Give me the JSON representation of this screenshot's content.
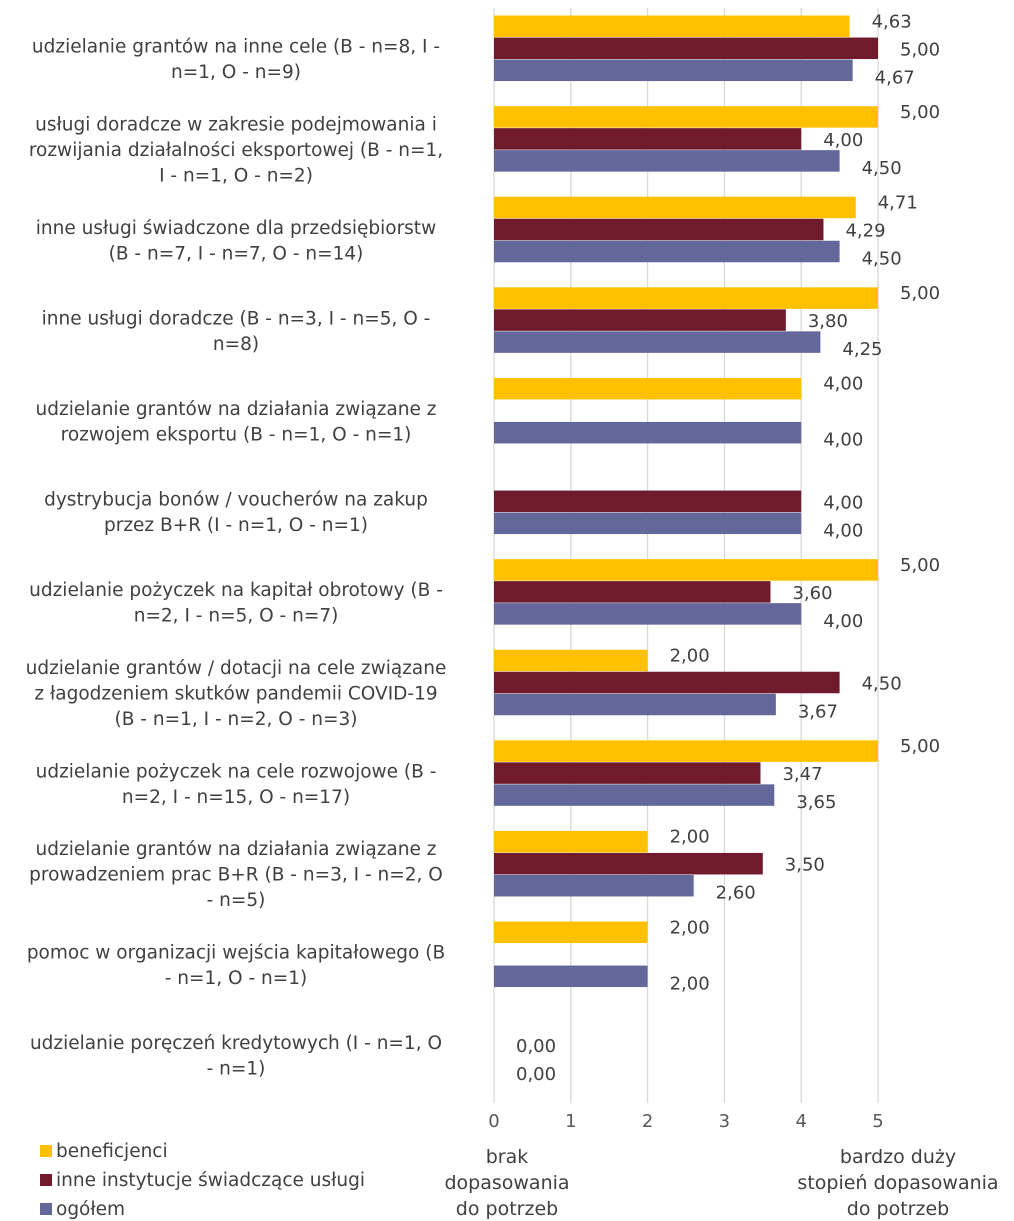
{
  "chart_data": {
    "type": "bar",
    "orientation": "horizontal",
    "categories": [
      "udzielanie grantów na inne cele (B - n=8, I - n=1, O - n=9)",
      "usługi doradcze w zakresie podejmowania i rozwijania działalności eksportowej (B - n=1, I - n=1, O - n=2)",
      "inne usługi świadczone dla przedsiębiorstw (B - n=7, I - n=7, O - n=14)",
      "inne usługi doradcze (B - n=3, I - n=5, O - n=8)",
      "udzielanie grantów na działania związane z rozwojem eksportu (B - n=1, O - n=1)",
      "dystrybucja bonów / voucherów na zakup przez B+R (I - n=1, O - n=1)",
      "udzielanie pożyczek na kapitał obrotowy (B - n=2, I - n=5, O - n=7)",
      "udzielanie grantów / dotacji na cele związane z łagodzeniem skutków pandemii COVID-19 (B - n=1, I - n=2, O - n=3)",
      "udzielanie pożyczek na cele rozwojowe (B - n=2, I - n=15, O - n=17)",
      "udzielanie grantów na działania związane z prowadzeniem prac B+R (B - n=3, I - n=2, O - n=5)",
      "pomoc w organizacji wejścia kapitałowego (B - n=1, O - n=1)",
      "udzielanie poręczeń kredytowych (I - n=1, O - n=1)"
    ],
    "category_lines": [
      [
        "udzielanie grantów na inne cele (B - n=8, I -",
        "n=1, O - n=9)"
      ],
      [
        "usługi doradcze w zakresie podejmowania i",
        "rozwijania działalności eksportowej (B - n=1,",
        "I - n=1, O - n=2)"
      ],
      [
        "inne usługi świadczone dla przedsiębiorstw",
        "(B - n=7, I - n=7, O - n=14)"
      ],
      [
        "inne usługi doradcze (B - n=3, I - n=5, O -",
        "n=8)"
      ],
      [
        "udzielanie grantów na działania związane z",
        "rozwojem eksportu (B - n=1, O - n=1)"
      ],
      [
        "dystrybucja bonów / voucherów na zakup",
        "przez B+R (I - n=1, O - n=1)"
      ],
      [
        "udzielanie pożyczek na kapitał obrotowy (B -",
        "n=2, I - n=5, O - n=7)"
      ],
      [
        "udzielanie grantów / dotacji na cele związane",
        "z łagodzeniem skutków pandemii COVID-19",
        "(B - n=1, I - n=2, O - n=3)"
      ],
      [
        "udzielanie pożyczek na cele rozwojowe (B -",
        "n=2, I - n=15, O - n=17)"
      ],
      [
        "udzielanie grantów na działania związane z",
        "prowadzeniem prac B+R (B - n=3, I - n=2, O",
        "- n=5)"
      ],
      [
        "pomoc w organizacji wejścia kapitałowego (B",
        "- n=1, O - n=1)"
      ],
      [
        "udzielanie poręczeń kredytowych (I - n=1, O",
        "- n=1)"
      ]
    ],
    "series": [
      {
        "name": "beneficjenci",
        "color": "#FFC000",
        "values": [
          4.63,
          5.0,
          4.71,
          5.0,
          4.0,
          null,
          5.0,
          2.0,
          5.0,
          2.0,
          2.0,
          null
        ],
        "labels": [
          "4,63",
          "5,00",
          "4,71",
          "5,00",
          "4,00",
          null,
          "5,00",
          "2,00",
          "5,00",
          "2,00",
          "2,00",
          null
        ]
      },
      {
        "name": "inne instytucje świadczące usługi",
        "color": "#701B2C",
        "values": [
          5.0,
          4.0,
          4.29,
          3.8,
          null,
          4.0,
          3.6,
          4.5,
          3.47,
          3.5,
          null,
          0.0
        ],
        "labels": [
          "5,00",
          "4,00",
          "4,29",
          "3,80",
          null,
          "4,00",
          "3,60",
          "4,50",
          "3,47",
          "3,50",
          null,
          "0,00"
        ]
      },
      {
        "name": "ogółem",
        "color": "#64679A",
        "values": [
          4.67,
          4.5,
          4.5,
          4.25,
          4.0,
          4.0,
          4.0,
          3.67,
          3.65,
          2.6,
          2.0,
          0.0
        ],
        "labels": [
          "4,67",
          "4,50",
          "4,50",
          "4,25",
          "4,00",
          "4,00",
          "4,00",
          "3,67",
          "3,65",
          "2,60",
          "2,00",
          "0,00"
        ]
      }
    ],
    "xlim": [
      0,
      5
    ],
    "xticks": [
      "0",
      "1",
      "2",
      "3",
      "4",
      "5"
    ],
    "grid": true,
    "legend": "bottom-left",
    "axis_notes": {
      "min": [
        "brak",
        "dopasowania",
        "do potrzeb"
      ],
      "max": [
        "bardzo duży",
        "stopień dopasowania",
        "do potrzeb"
      ]
    }
  }
}
